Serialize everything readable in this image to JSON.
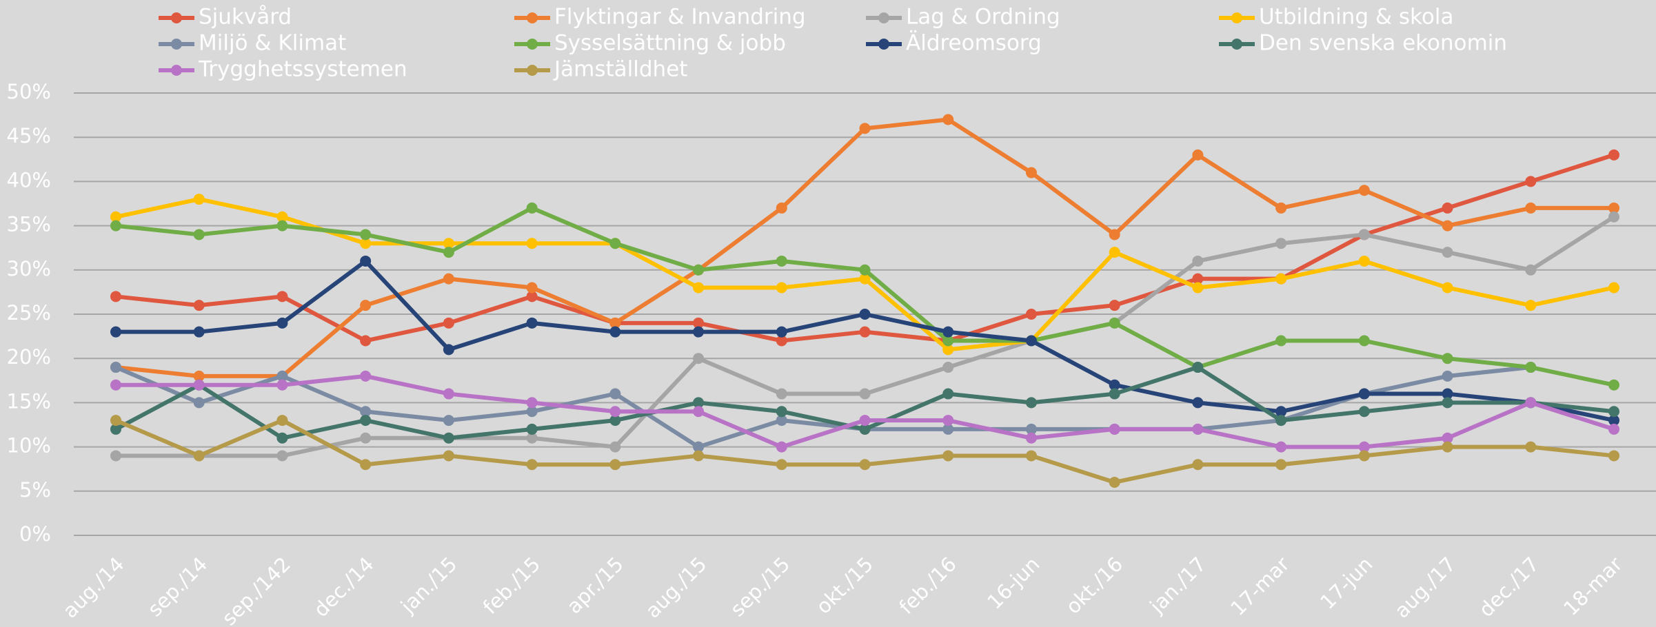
{
  "chart_data": {
    "type": "line",
    "categories": [
      "aug./14",
      "sep./14",
      "sep./142",
      "dec./14",
      "jan./15",
      "feb./15",
      "apr./15",
      "aug./15",
      "sep./15",
      "okt./15",
      "feb./16",
      "16-jun",
      "okt./16",
      "jan./17",
      "17-mar",
      "17-jun",
      "aug./17",
      "dec./17",
      "18-mar"
    ],
    "series": [
      {
        "name": "Sjukvård",
        "color": "#e0573f",
        "values": [
          27,
          26,
          27,
          22,
          24,
          27,
          24,
          24,
          22,
          23,
          22,
          25,
          26,
          29,
          29,
          34,
          37,
          40,
          43
        ]
      },
      {
        "name": "Flyktingar & Invandring",
        "color": "#ed7d31",
        "values": [
          19,
          18,
          18,
          26,
          29,
          28,
          24,
          30,
          37,
          46,
          47,
          41,
          34,
          43,
          37,
          39,
          35,
          37,
          37
        ]
      },
      {
        "name": "Lag & Ordning",
        "color": "#a5a5a5",
        "values": [
          9,
          9,
          9,
          11,
          11,
          11,
          10,
          20,
          16,
          16,
          19,
          22,
          24,
          31,
          33,
          34,
          32,
          30,
          36
        ]
      },
      {
        "name": "Utbildning & skola",
        "color": "#ffc000",
        "values": [
          36,
          38,
          36,
          33,
          33,
          33,
          33,
          28,
          28,
          29,
          21,
          22,
          32,
          28,
          29,
          31,
          28,
          26,
          28
        ]
      },
      {
        "name": "Miljö & Klimat",
        "color": "#7a8ba3",
        "values": [
          19,
          15,
          18,
          14,
          13,
          14,
          16,
          10,
          13,
          12,
          12,
          12,
          12,
          12,
          13,
          16,
          18,
          19,
          null
        ]
      },
      {
        "name": "Sysselsättning & jobb",
        "color": "#70ad47",
        "values": [
          35,
          34,
          35,
          34,
          32,
          37,
          33,
          30,
          31,
          30,
          22,
          22,
          24,
          19,
          22,
          22,
          20,
          19,
          17
        ]
      },
      {
        "name": "Äldreomsorg",
        "color": "#264478",
        "values": [
          23,
          23,
          24,
          31,
          21,
          24,
          23,
          23,
          23,
          25,
          23,
          22,
          17,
          15,
          14,
          16,
          16,
          15,
          13
        ]
      },
      {
        "name": "Den svenska ekonomin",
        "color": "#43756a",
        "values": [
          12,
          17,
          11,
          13,
          11,
          12,
          13,
          15,
          14,
          12,
          16,
          15,
          16,
          19,
          13,
          14,
          15,
          15,
          14
        ]
      },
      {
        "name": "Trygghetssystemen",
        "color": "#b973c6",
        "values": [
          17,
          17,
          17,
          18,
          16,
          15,
          14,
          14,
          10,
          13,
          13,
          11,
          12,
          12,
          10,
          10,
          11,
          15,
          12
        ]
      },
      {
        "name": "Jämställdhet",
        "color": "#b59a4a",
        "values": [
          13,
          9,
          13,
          8,
          9,
          8,
          8,
          9,
          8,
          8,
          9,
          9,
          6,
          8,
          8,
          9,
          10,
          10,
          9
        ]
      }
    ],
    "ylim": [
      0,
      50
    ],
    "yticks": [
      {
        "value": 0,
        "label": "0%"
      },
      {
        "value": 5,
        "label": "5%"
      },
      {
        "value": 10,
        "label": "10%"
      },
      {
        "value": 15,
        "label": "15%"
      },
      {
        "value": 20,
        "label": "20%"
      },
      {
        "value": 25,
        "label": "25%"
      },
      {
        "value": 30,
        "label": "30%"
      },
      {
        "value": 35,
        "label": "35%"
      },
      {
        "value": 40,
        "label": "40%"
      },
      {
        "value": 45,
        "label": "45%"
      },
      {
        "value": 50,
        "label": "50%"
      }
    ],
    "grid": true,
    "legend": "top"
  }
}
